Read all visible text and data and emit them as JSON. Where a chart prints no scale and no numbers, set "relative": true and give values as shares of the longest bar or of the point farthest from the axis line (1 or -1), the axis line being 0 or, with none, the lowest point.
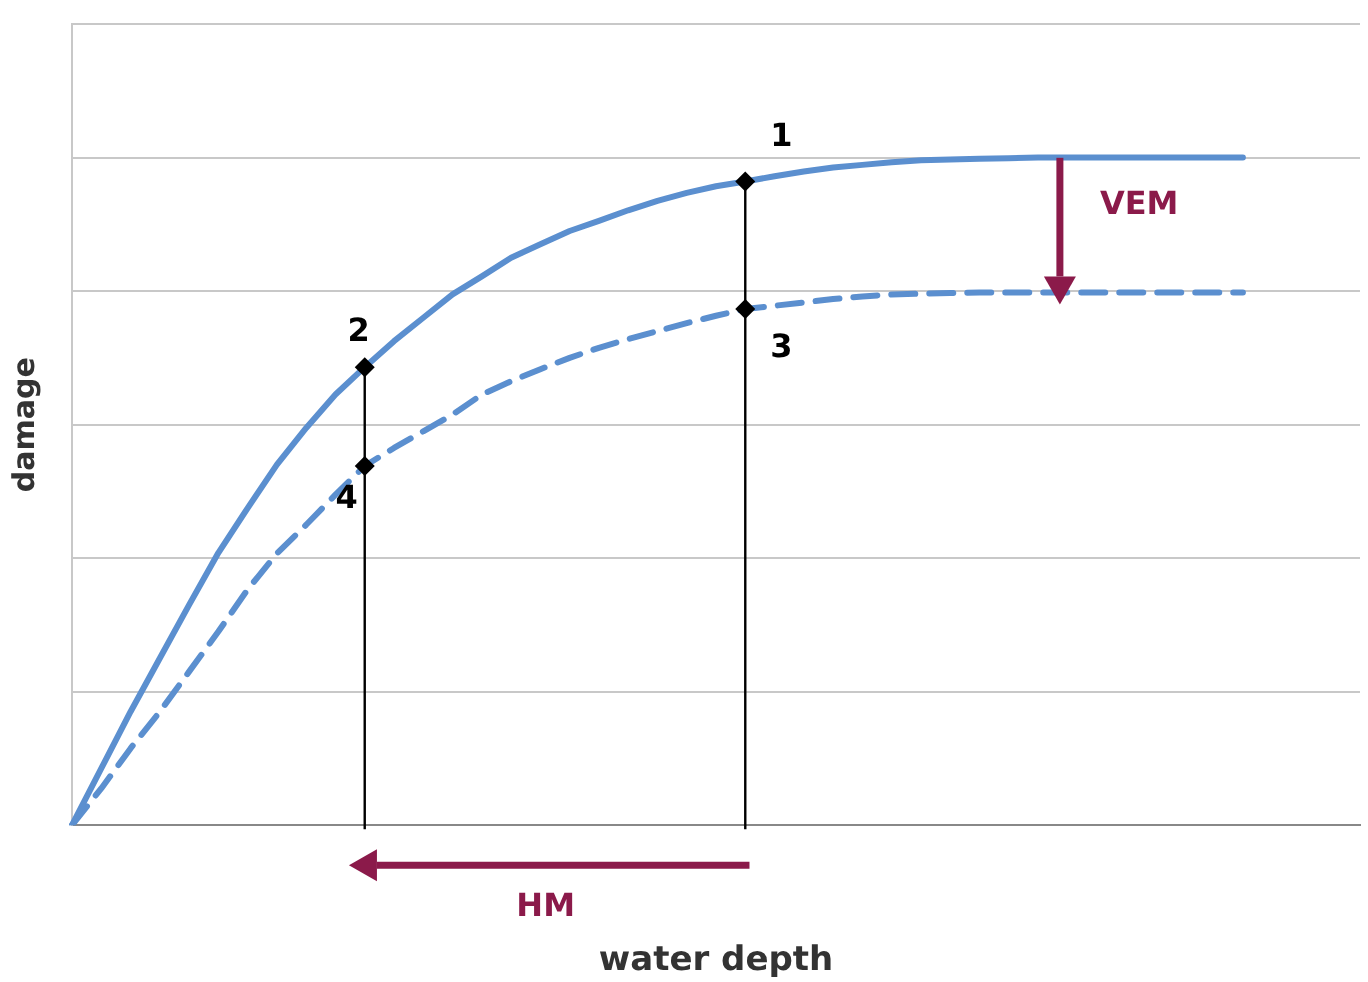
{
  "chart_data": {
    "type": "line",
    "relative": true,
    "xlabel": "water depth",
    "ylabel": "damage",
    "grid": "y",
    "legend": false,
    "marker": "none",
    "categories": [
      null,
      null,
      null,
      null,
      null,
      null,
      null,
      null,
      null,
      null,
      null,
      null,
      null,
      null,
      null,
      null,
      null,
      null,
      null,
      null,
      null,
      null,
      null,
      null,
      null,
      null,
      null,
      null,
      null,
      null,
      null,
      null,
      null,
      null,
      null,
      null,
      null,
      null,
      null,
      null,
      null,
      null,
      null,
      null,
      null
    ],
    "series": [
      {
        "color": "#5b8fcf",
        "line_style": "solid",
        "values": [
          0,
          0.085,
          0.17,
          0.25,
          0.33,
          0.408,
          0.475,
          0.54,
          0.595,
          0.645,
          0.686,
          0.725,
          0.76,
          0.795,
          0.822,
          0.85,
          0.87,
          0.89,
          0.905,
          0.921,
          0.935,
          0.947,
          0.957,
          0.964,
          0.972,
          0.979,
          0.985,
          0.989,
          0.993,
          0.996,
          0.997,
          0.998,
          0.999,
          1,
          1,
          1,
          1,
          1,
          1,
          1,
          1,
          null,
          null,
          null,
          null
        ]
      },
      {
        "color": "#5b8fcf",
        "line_style": "dashed",
        "values": [
          0,
          0.055,
          0.115,
          0.17,
          0.23,
          0.29,
          0.353,
          0.407,
          0.45,
          0.495,
          0.538,
          0.565,
          0.59,
          0.615,
          0.645,
          0.665,
          0.683,
          0.7,
          0.715,
          0.728,
          0.74,
          0.752,
          0.763,
          0.773,
          0.778,
          0.783,
          0.788,
          0.792,
          0.795,
          0.796,
          0.797,
          0.798,
          0.798,
          0.798,
          0.798,
          0.798,
          0.798,
          0.798,
          0.798,
          0.798,
          0.798,
          null,
          null,
          null,
          null
        ]
      }
    ],
    "annotations": [
      {
        "text": "1",
        "y": 0.964
      },
      {
        "text": "2",
        "y": 0.686
      },
      {
        "text": "3",
        "y": 0.773
      },
      {
        "text": "4",
        "y": 0.538
      },
      "VEM",
      "HM"
    ]
  }
}
